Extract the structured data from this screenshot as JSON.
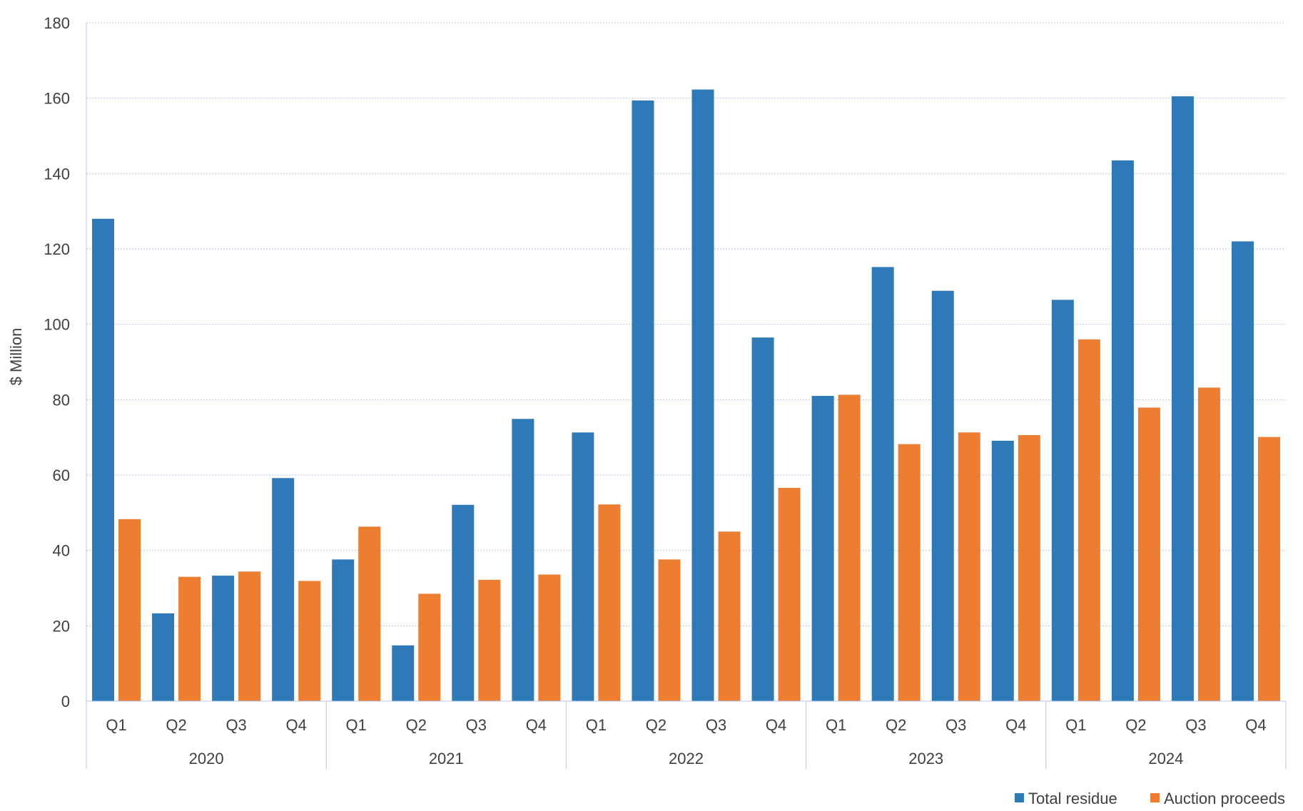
{
  "chart_data": {
    "type": "bar",
    "ylabel": "$ Million",
    "ylim": [
      0,
      180
    ],
    "yticks": [
      0,
      20,
      40,
      60,
      80,
      100,
      120,
      140,
      160,
      180
    ],
    "grid": "horizontal dashed",
    "legend_position": "bottom-right",
    "quarters": [
      "Q1",
      "Q2",
      "Q3",
      "Q4"
    ],
    "years": [
      "2020",
      "2021",
      "2022",
      "2023",
      "2024"
    ],
    "categories": [
      "Q1 2020",
      "Q2 2020",
      "Q3 2020",
      "Q4 2020",
      "Q1 2021",
      "Q2 2021",
      "Q3 2021",
      "Q4 2021",
      "Q1 2022",
      "Q2 2022",
      "Q3 2022",
      "Q4 2022",
      "Q1 2023",
      "Q2 2023",
      "Q3 2023",
      "Q4 2023",
      "Q1 2024",
      "Q2 2024",
      "Q3 2024",
      "Q4 2024"
    ],
    "series": [
      {
        "name": "Total residue",
        "color": "#2E7AB8",
        "values": [
          128,
          23.3,
          33.3,
          59.2,
          37.6,
          14.8,
          52.1,
          74.9,
          71.3,
          159.4,
          162.3,
          96.5,
          81,
          115.2,
          108.9,
          69.1,
          106.5,
          143.5,
          160.5,
          122
        ]
      },
      {
        "name": "Auction proceeds",
        "color": "#ED7D31",
        "values": [
          48.3,
          33,
          34.4,
          31.9,
          46.3,
          28.5,
          32.2,
          33.6,
          52.2,
          37.6,
          45,
          56.6,
          81.3,
          68.2,
          71.3,
          70.6,
          96,
          77.9,
          83.2,
          70.1
        ]
      }
    ]
  }
}
